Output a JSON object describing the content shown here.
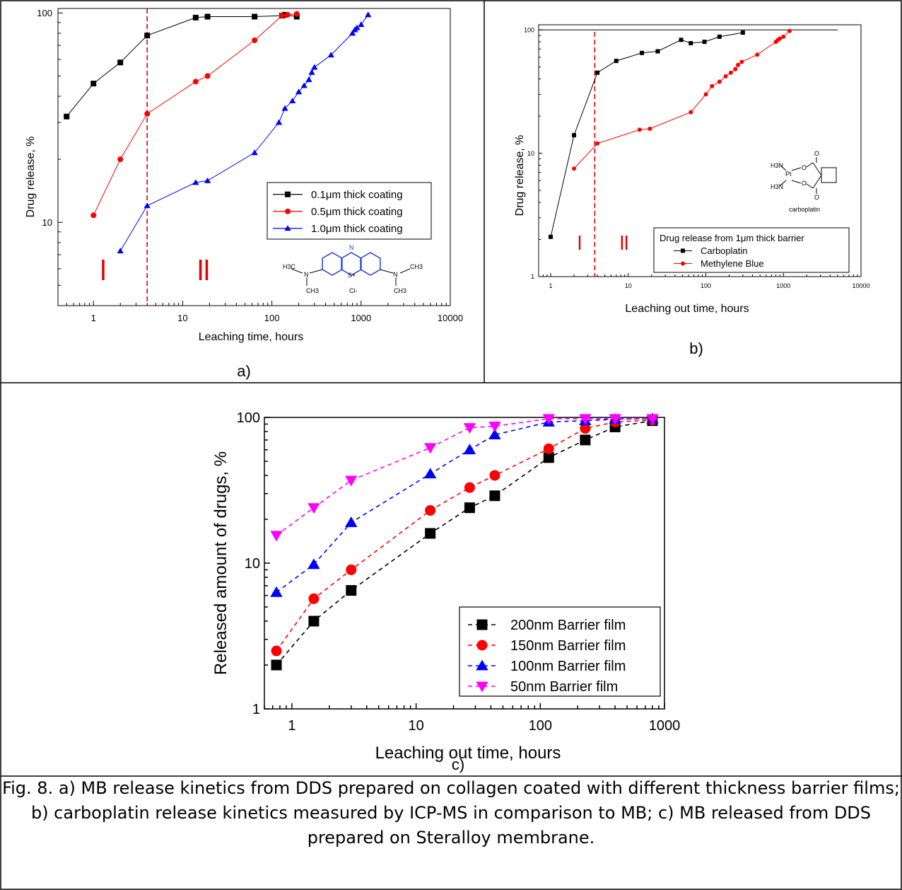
{
  "panel_labels": [
    "a)",
    "b)",
    "c)"
  ],
  "caption": "Fig. 8. a) MB release kinetics from DDS prepared on collagen coated with different thickness barrier films; b) carboplatin release kinetics measured by ICP-MS in comparison to MB; c) MB released from DDS prepared on Steralloy membrane.",
  "chart_data": [
    {
      "id": "a",
      "type": "line",
      "title": "",
      "xlabel": "Leaching time, hours",
      "ylabel": "Drug release, %",
      "xscale": "log",
      "yscale": "log",
      "xlim": [
        0.4,
        10000
      ],
      "ylim": [
        4,
        105
      ],
      "xticks": [
        "1",
        "10",
        "100",
        "1000",
        "10000"
      ],
      "yticks": [
        "10",
        "100"
      ],
      "vline": 4,
      "region_labels": [
        "l",
        "ll"
      ],
      "molecule_text": [
        "H3C",
        "N",
        "CH3",
        "S+",
        "N",
        "CH3",
        "CH3",
        "N",
        "Cl-"
      ],
      "legend": {
        "position": "center-right"
      },
      "series": [
        {
          "name": "0.1μm thick coating",
          "color": "#000000",
          "marker": "square",
          "x": [
            0.5,
            1,
            2,
            4,
            14,
            19,
            64,
            130,
            140,
            190
          ],
          "y": [
            32,
            46,
            58,
            78,
            95,
            96,
            96,
            97,
            98,
            96
          ]
        },
        {
          "name": "0.5μm thick coating",
          "color": "#ff0000",
          "marker": "circle",
          "x": [
            1,
            2,
            4,
            14,
            19,
            64,
            130,
            150,
            190
          ],
          "y": [
            10.8,
            20,
            33,
            47,
            50,
            74,
            97,
            98,
            99
          ]
        },
        {
          "name": "1.0μm thick coating",
          "color": "#0000ff",
          "marker": "triangle",
          "x": [
            2,
            4,
            14,
            19,
            64,
            120,
            140,
            170,
            200,
            230,
            260,
            280,
            300,
            460,
            800,
            850,
            900,
            1000,
            1200
          ],
          "y": [
            7.3,
            12,
            15.5,
            15.8,
            21.5,
            30,
            35,
            38,
            42,
            45,
            48,
            52,
            55,
            63,
            80,
            83,
            85,
            88,
            98
          ]
        }
      ]
    },
    {
      "id": "b",
      "type": "line",
      "title": "",
      "xlabel": "Leaching out time, hours",
      "ylabel": "Drug release, %",
      "xscale": "log",
      "yscale": "log",
      "xlim": [
        0.7,
        10000
      ],
      "ylim": [
        1,
        110
      ],
      "xticks": [
        "1",
        "10",
        "100",
        "1000",
        "10000"
      ],
      "yticks": [
        "1",
        "10",
        "100"
      ],
      "vline": 3.7,
      "hline": 100,
      "region_labels": [
        "l",
        "ll"
      ],
      "molecule_text": [
        "H3N",
        "Pt",
        "H3N",
        "O",
        "O",
        "O",
        "O",
        "carboplatin"
      ],
      "legend": {
        "title": "Drug release from 1μm thick barrier",
        "position": "bottom-right"
      },
      "series": [
        {
          "name": "Carboplatin",
          "color": "#000000",
          "marker": "square",
          "x": [
            1,
            2,
            4,
            7,
            15,
            24,
            48,
            64,
            96,
            150,
            300
          ],
          "y": [
            2.1,
            14,
            45,
            56,
            65,
            67,
            83,
            78,
            80,
            88,
            95
          ]
        },
        {
          "name": "Methylene Blue",
          "color": "#ff0000",
          "marker": "circle",
          "x": [
            2,
            4,
            14,
            19,
            64,
            100,
            120,
            150,
            180,
            210,
            240,
            260,
            290,
            460,
            800,
            850,
            900,
            1000,
            1200
          ],
          "y": [
            7.5,
            12,
            15.5,
            15.8,
            21.5,
            30,
            35,
            38,
            42,
            45,
            48,
            52,
            55,
            63,
            80,
            83,
            85,
            88,
            98
          ]
        }
      ]
    },
    {
      "id": "c",
      "type": "line",
      "title": "",
      "xlabel": "Leaching out time, hours",
      "ylabel": "Released amount of drugs, %",
      "xscale": "log",
      "yscale": "log",
      "xlim": [
        0.6,
        1000
      ],
      "ylim": [
        1,
        100
      ],
      "xticks": [
        "1",
        "10",
        "100",
        "1000"
      ],
      "yticks": [
        "1",
        "10",
        "100"
      ],
      "legend": {
        "position": "bottom-right"
      },
      "x": [
        0.75,
        1.5,
        3,
        13,
        27,
        43,
        117,
        230,
        400,
        800
      ],
      "series": [
        {
          "name": "200nm Barrier film",
          "color": "#000000",
          "marker": "square",
          "values": [
            2,
            4,
            6.5,
            16,
            24,
            29,
            53,
            70,
            86,
            95
          ]
        },
        {
          "name": "150nm Barrier film",
          "color": "#ff0000",
          "marker": "circle",
          "values": [
            2.5,
            5.7,
            9,
            23,
            33,
            40,
            61,
            84,
            93,
            96
          ]
        },
        {
          "name": "100nm Barrier film",
          "color": "#0000ff",
          "marker": "triangle",
          "values": [
            6.3,
            9.8,
            19,
            41,
            60,
            76,
            93,
            95,
            97,
            98
          ]
        },
        {
          "name": "  50nm Barrier film",
          "color": "#ff00ff",
          "marker": "triangle-down",
          "values": [
            15.5,
            24,
            37,
            62,
            85,
            87,
            98,
            98,
            98,
            98
          ]
        }
      ]
    }
  ]
}
